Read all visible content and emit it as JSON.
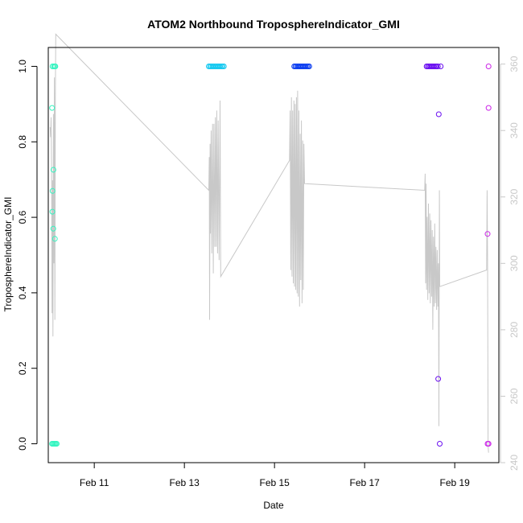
{
  "chart_data": {
    "type": "scatter",
    "title": "ATOM2 Northbound TroposphereIndicator_GMI",
    "xlabel": "Date",
    "ylabel": "TroposphereIndicator_GMI",
    "xlim": [
      "2016-02-09T23:30",
      "2016-02-19T23:30"
    ],
    "ylim": [
      -0.05,
      1.05
    ],
    "y2lim": [
      240,
      365
    ],
    "x_ticks": [
      {
        "date": "2016-02-11",
        "label": "Feb 11"
      },
      {
        "date": "2016-02-13",
        "label": "Feb 13"
      },
      {
        "date": "2016-02-15",
        "label": "Feb 15"
      },
      {
        "date": "2016-02-17",
        "label": "Feb 17"
      },
      {
        "date": "2016-02-19",
        "label": "Feb 19"
      }
    ],
    "y_ticks": [
      "0.0",
      "0.2",
      "0.4",
      "0.6",
      "0.8",
      "1.0"
    ],
    "y2_ticks": [
      "240",
      "260",
      "280",
      "300",
      "320",
      "340",
      "360"
    ],
    "grid": false,
    "point_series": [
      {
        "color": "#33f5c0",
        "points": [
          [
            "2016-02-10T01:30",
            0.0
          ],
          [
            "2016-02-10T02:00",
            0.0
          ],
          [
            "2016-02-10T02:30",
            0.0
          ],
          [
            "2016-02-10T03:00",
            0.0
          ],
          [
            "2016-02-10T03:30",
            0.0
          ],
          [
            "2016-02-10T04:00",
            0.0
          ],
          [
            "2016-02-10T01:30",
            0.89
          ],
          [
            "2016-02-10T01:45",
            0.67
          ],
          [
            "2016-02-10T01:40",
            0.615
          ],
          [
            "2016-02-10T02:10",
            0.57
          ],
          [
            "2016-02-10T02:15",
            0.726
          ],
          [
            "2016-02-10T03:00",
            0.543
          ],
          [
            "2016-02-10T01:45",
            1.0
          ],
          [
            "2016-02-10T02:30",
            1.0
          ],
          [
            "2016-02-10T03:00",
            1.0
          ],
          [
            "2016-02-10T03:15",
            1.0
          ]
        ]
      },
      {
        "color": "#14c8f0",
        "points": [
          [
            "2016-02-13T13:00",
            1.0
          ],
          [
            "2016-02-13T13:40",
            1.0
          ],
          [
            "2016-02-13T14:20",
            1.0
          ],
          [
            "2016-02-13T15:00",
            1.0
          ],
          [
            "2016-02-13T15:40",
            1.0
          ],
          [
            "2016-02-13T16:20",
            1.0
          ],
          [
            "2016-02-13T17:00",
            1.0
          ],
          [
            "2016-02-13T17:40",
            1.0
          ],
          [
            "2016-02-13T18:20",
            1.0
          ],
          [
            "2016-02-13T19:00",
            1.0
          ],
          [
            "2016-02-13T19:40",
            1.0
          ],
          [
            "2016-02-13T20:20",
            1.0
          ],
          [
            "2016-02-13T21:00",
            1.0
          ]
        ]
      },
      {
        "color": "#0a3cf0",
        "points": [
          [
            "2016-02-15T10:30",
            1.0
          ],
          [
            "2016-02-15T11:10",
            1.0
          ],
          [
            "2016-02-15T11:50",
            1.0
          ],
          [
            "2016-02-15T12:30",
            1.0
          ],
          [
            "2016-02-15T13:10",
            1.0
          ],
          [
            "2016-02-15T13:50",
            1.0
          ],
          [
            "2016-02-15T14:30",
            1.0
          ],
          [
            "2016-02-15T15:10",
            1.0
          ],
          [
            "2016-02-15T15:50",
            1.0
          ],
          [
            "2016-02-15T16:30",
            1.0
          ],
          [
            "2016-02-15T17:10",
            1.0
          ],
          [
            "2016-02-15T17:50",
            1.0
          ],
          [
            "2016-02-15T18:30",
            1.0
          ]
        ]
      },
      {
        "color": "#6a0ef0",
        "points": [
          [
            "2016-02-18T09:00",
            1.0
          ],
          [
            "2016-02-18T09:40",
            1.0
          ],
          [
            "2016-02-18T10:20",
            1.0
          ],
          [
            "2016-02-18T11:00",
            1.0
          ],
          [
            "2016-02-18T11:40",
            1.0
          ],
          [
            "2016-02-18T12:20",
            1.0
          ],
          [
            "2016-02-18T13:00",
            1.0
          ],
          [
            "2016-02-18T13:40",
            1.0
          ],
          [
            "2016-02-18T14:20",
            1.0
          ],
          [
            "2016-02-18T15:00",
            1.0
          ],
          [
            "2016-02-18T15:30",
            0.873
          ],
          [
            "2016-02-18T15:10",
            0.172
          ],
          [
            "2016-02-18T16:00",
            0.0
          ],
          [
            "2016-02-18T16:30",
            1.0
          ]
        ]
      },
      {
        "color": "#cc24e8",
        "points": [
          [
            "2016-02-19T18:00",
            1.0
          ],
          [
            "2016-02-19T18:00",
            0.89
          ],
          [
            "2016-02-19T17:30",
            0.556
          ],
          [
            "2016-02-19T17:30",
            0.0
          ],
          [
            "2016-02-19T18:00",
            0.0
          ]
        ]
      }
    ],
    "line_series": {
      "axis": "right",
      "color": "#c8c8c8",
      "points": [
        [
          "2016-02-10T00:30",
          341
        ],
        [
          "2016-02-10T00:45",
          338
        ],
        [
          "2016-02-10T01:00",
          344
        ],
        [
          "2016-02-10T01:15",
          328
        ],
        [
          "2016-02-10T01:30",
          285
        ],
        [
          "2016-02-10T01:45",
          325
        ],
        [
          "2016-02-10T02:00",
          278
        ],
        [
          "2016-02-10T02:15",
          345
        ],
        [
          "2016-02-10T02:30",
          300
        ],
        [
          "2016-02-10T02:45",
          356
        ],
        [
          "2016-02-10T03:00",
          283
        ],
        [
          "2016-02-10T03:15",
          350
        ],
        [
          "2016-02-10T03:30",
          369
        ],
        [
          "2016-02-13T13:00",
          322
        ],
        [
          "2016-02-13T13:15",
          332
        ],
        [
          "2016-02-13T13:25",
          283
        ],
        [
          "2016-02-13T13:40",
          336
        ],
        [
          "2016-02-13T13:55",
          309
        ],
        [
          "2016-02-13T14:15",
          340
        ],
        [
          "2016-02-13T14:35",
          303
        ],
        [
          "2016-02-13T15:00",
          342
        ],
        [
          "2016-02-13T15:25",
          297
        ],
        [
          "2016-02-13T15:45",
          342
        ],
        [
          "2016-02-13T16:10",
          305
        ],
        [
          "2016-02-13T16:30",
          344
        ],
        [
          "2016-02-13T16:55",
          305
        ],
        [
          "2016-02-13T17:15",
          346
        ],
        [
          "2016-02-13T17:40",
          303
        ],
        [
          "2016-02-13T18:00",
          343
        ],
        [
          "2016-02-13T18:30",
          301
        ],
        [
          "2016-02-13T19:00",
          349
        ],
        [
          "2016-02-13T19:20",
          296
        ],
        [
          "2016-02-15T08:00",
          331
        ],
        [
          "2016-02-15T08:20",
          346
        ],
        [
          "2016-02-15T08:40",
          298
        ],
        [
          "2016-02-15T09:00",
          350
        ],
        [
          "2016-02-15T09:20",
          296
        ],
        [
          "2016-02-15T09:40",
          346
        ],
        [
          "2016-02-15T10:00",
          294
        ],
        [
          "2016-02-15T10:20",
          349
        ],
        [
          "2016-02-15T10:40",
          293
        ],
        [
          "2016-02-15T11:00",
          348
        ],
        [
          "2016-02-15T11:20",
          292
        ],
        [
          "2016-02-15T11:40",
          350
        ],
        [
          "2016-02-15T12:00",
          291
        ],
        [
          "2016-02-15T12:20",
          352
        ],
        [
          "2016-02-15T12:40",
          290
        ],
        [
          "2016-02-15T13:00",
          346
        ],
        [
          "2016-02-15T13:20",
          287
        ],
        [
          "2016-02-15T13:40",
          339
        ],
        [
          "2016-02-15T14:00",
          295
        ],
        [
          "2016-02-15T14:20",
          343
        ],
        [
          "2016-02-15T14:40",
          288
        ],
        [
          "2016-02-15T15:00",
          337
        ],
        [
          "2016-02-15T15:20",
          292
        ],
        [
          "2016-02-15T15:40",
          336
        ],
        [
          "2016-02-15T16:00",
          324
        ],
        [
          "2016-02-18T08:00",
          322
        ],
        [
          "2016-02-18T08:15",
          327
        ],
        [
          "2016-02-18T08:30",
          294
        ],
        [
          "2016-02-18T08:45",
          324
        ],
        [
          "2016-02-18T09:00",
          292
        ],
        [
          "2016-02-18T09:20",
          314
        ],
        [
          "2016-02-18T09:40",
          289
        ],
        [
          "2016-02-18T10:00",
          318
        ],
        [
          "2016-02-18T10:20",
          291
        ],
        [
          "2016-02-18T10:40",
          315
        ],
        [
          "2016-02-18T11:00",
          288
        ],
        [
          "2016-02-18T11:20",
          313
        ],
        [
          "2016-02-18T11:40",
          290
        ],
        [
          "2016-02-18T12:00",
          310
        ],
        [
          "2016-02-18T12:20",
          280
        ],
        [
          "2016-02-18T12:40",
          308
        ],
        [
          "2016-02-18T13:00",
          287
        ],
        [
          "2016-02-18T13:20",
          312
        ],
        [
          "2016-02-18T13:40",
          288
        ],
        [
          "2016-02-18T14:00",
          305
        ],
        [
          "2016-02-18T14:20",
          286
        ],
        [
          "2016-02-18T14:40",
          304
        ],
        [
          "2016-02-18T15:00",
          287
        ],
        [
          "2016-02-18T15:20",
          300
        ],
        [
          "2016-02-18T15:35",
          251
        ],
        [
          "2016-02-18T15:50",
          322
        ],
        [
          "2016-02-18T16:00",
          293
        ],
        [
          "2016-02-19T17:00",
          298
        ],
        [
          "2016-02-19T17:15",
          322
        ],
        [
          "2016-02-19T17:30",
          300
        ],
        [
          "2016-02-19T17:45",
          245
        ],
        [
          "2016-02-19T18:00",
          243
        ]
      ]
    }
  }
}
